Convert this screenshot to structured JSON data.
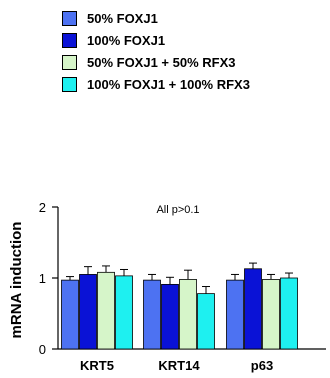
{
  "chart_data": {
    "type": "bar",
    "title": "",
    "xlabel": "",
    "ylabel": "mRNA induction",
    "ylim": [
      0,
      2
    ],
    "yticks": [
      0,
      1,
      2
    ],
    "categories": [
      "KRT5",
      "KRT14",
      "p63"
    ],
    "legend_position": "top",
    "annotation": "All p>0.1",
    "series": [
      {
        "name": "50% FOXJ1",
        "color": "#4d72f2",
        "values": [
          0.97,
          0.97,
          0.97
        ],
        "errors": [
          0.05,
          0.08,
          0.08
        ]
      },
      {
        "name": "100% FOXJ1",
        "color": "#0a12d6",
        "values": [
          1.05,
          0.91,
          1.13
        ],
        "errors": [
          0.11,
          0.1,
          0.08
        ]
      },
      {
        "name": "50% FOXJ1 + 50% RFX3",
        "color": "#d6f5c9",
        "values": [
          1.08,
          0.98,
          0.98
        ],
        "errors": [
          0.09,
          0.13,
          0.07
        ]
      },
      {
        "name": "100% FOXJ1 + 100% RFX3",
        "color": "#1ef0f0",
        "values": [
          1.03,
          0.78,
          1.0
        ],
        "errors": [
          0.09,
          0.1,
          0.07
        ]
      }
    ]
  }
}
